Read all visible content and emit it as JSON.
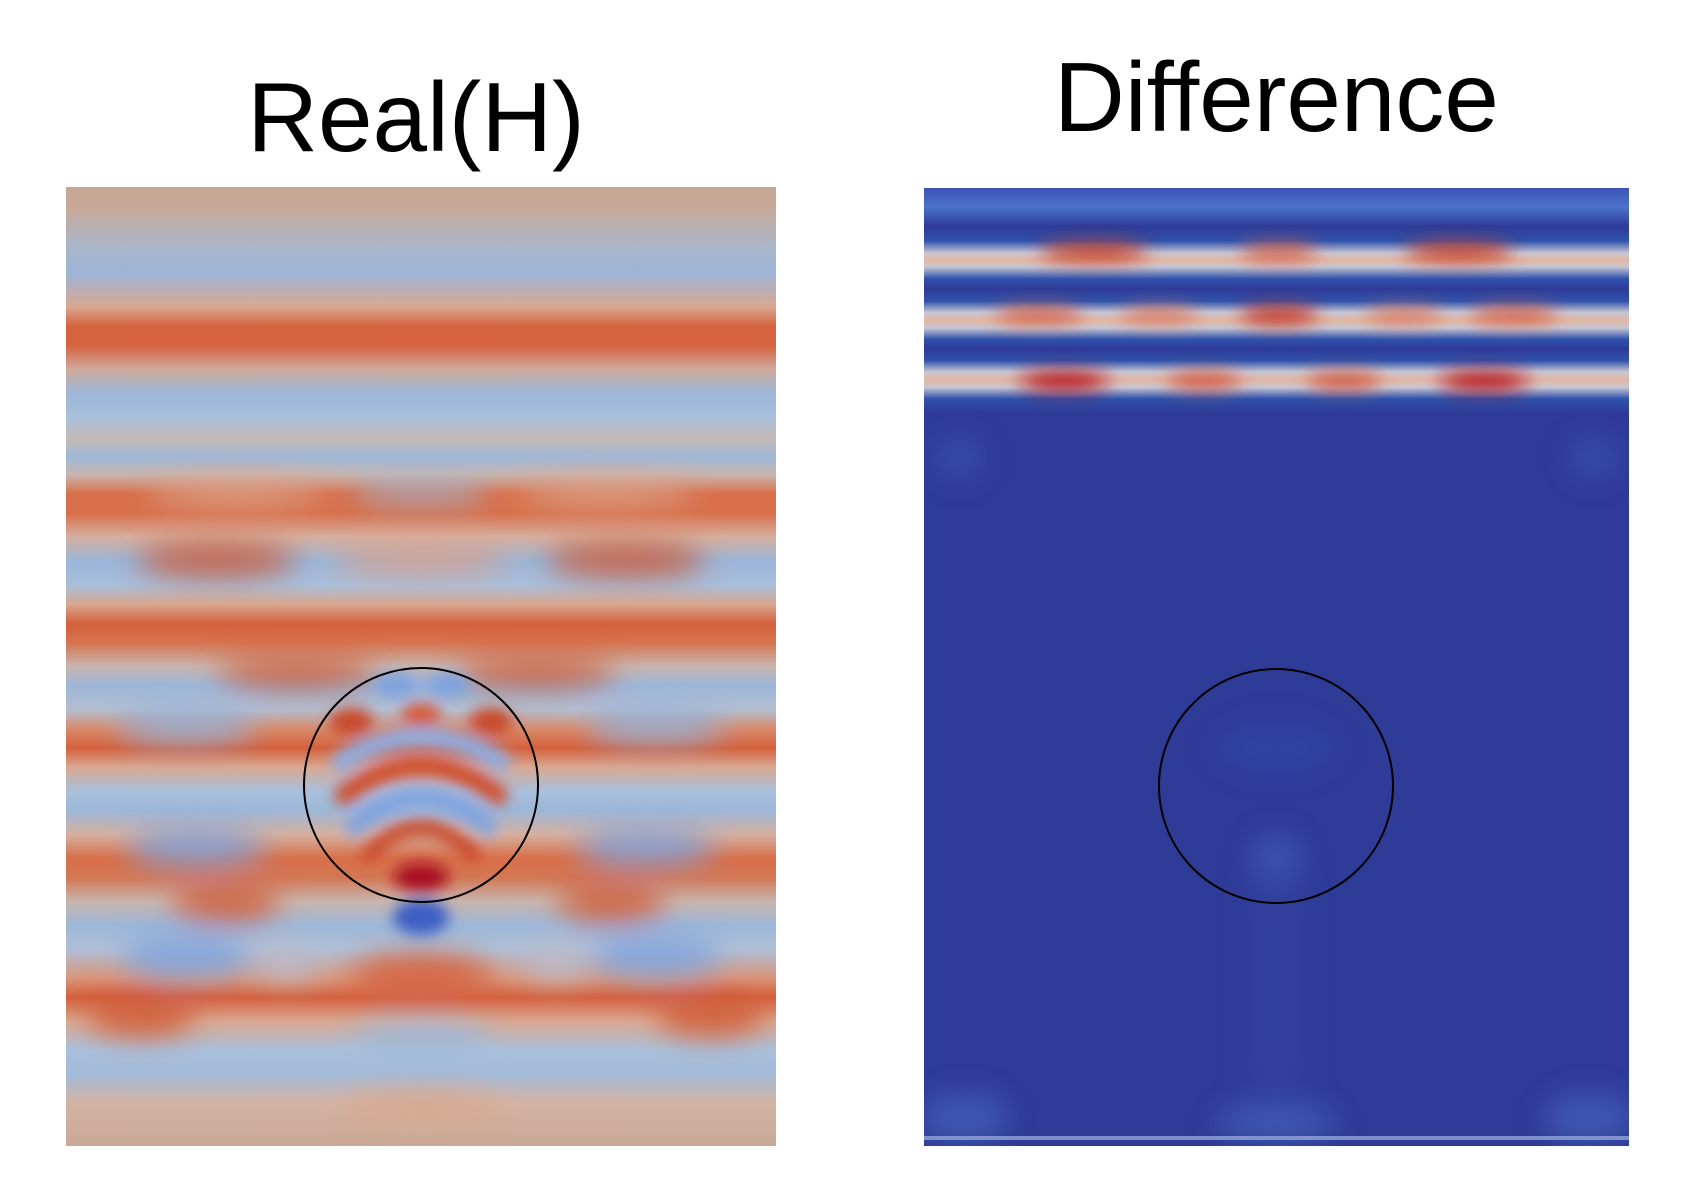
{
  "panels": {
    "left": {
      "title": "Real(H)"
    },
    "right": {
      "title": "Difference"
    }
  },
  "colors": {
    "background": "#ffffff",
    "cool": "#3b4cc0",
    "neutral": "#dddcdc",
    "warm": "#b40426",
    "difference_base": "#2e3b97",
    "scatterer_outline": "#000000"
  },
  "icons": {
    "scatterer": "circle-outline"
  }
}
